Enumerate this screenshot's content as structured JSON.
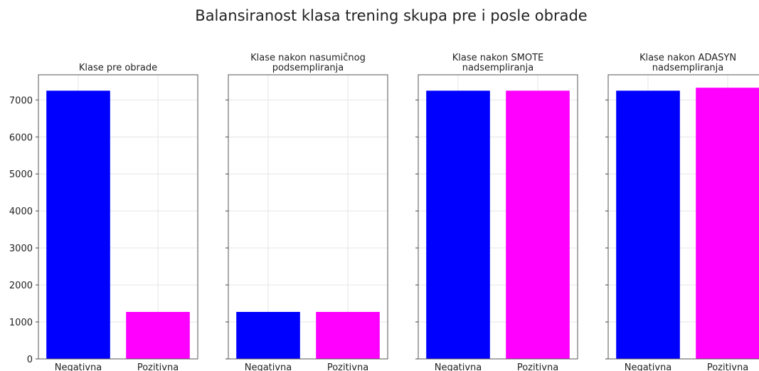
{
  "title": "Balansiranost klasa trening skupa pre i posle obrade",
  "chart_data": [
    {
      "type": "bar",
      "title": "Klase pre obrade",
      "categories": [
        "Negativna",
        "Pozitivna"
      ],
      "values": [
        7250,
        1270
      ],
      "colors": [
        "#0000ff",
        "#ff00ff"
      ],
      "ylim": [
        0,
        7680
      ],
      "yticks": [
        0,
        1000,
        2000,
        3000,
        4000,
        5000,
        6000,
        7000
      ],
      "grid": true
    },
    {
      "type": "bar",
      "title": "Klase nakon nasumičnog\npodsempliranja",
      "categories": [
        "Negativna",
        "Pozitivna"
      ],
      "values": [
        1270,
        1270
      ],
      "colors": [
        "#0000ff",
        "#ff00ff"
      ],
      "ylim": [
        0,
        7680
      ],
      "yticks": [
        0,
        1000,
        2000,
        3000,
        4000,
        5000,
        6000,
        7000
      ],
      "grid": true
    },
    {
      "type": "bar",
      "title": "Klase nakon SMOTE\nnadsempliranja",
      "categories": [
        "Negativna",
        "Pozitivna"
      ],
      "values": [
        7250,
        7250
      ],
      "colors": [
        "#0000ff",
        "#ff00ff"
      ],
      "ylim": [
        0,
        7680
      ],
      "yticks": [
        0,
        1000,
        2000,
        3000,
        4000,
        5000,
        6000,
        7000
      ],
      "grid": true
    },
    {
      "type": "bar",
      "title": "Klase nakon ADASYN\nnadsempliranja",
      "categories": [
        "Negativna",
        "Pozitivna"
      ],
      "values": [
        7250,
        7330
      ],
      "colors": [
        "#0000ff",
        "#ff00ff"
      ],
      "ylim": [
        0,
        7680
      ],
      "yticks": [
        0,
        1000,
        2000,
        3000,
        4000,
        5000,
        6000,
        7000
      ],
      "grid": true
    }
  ]
}
